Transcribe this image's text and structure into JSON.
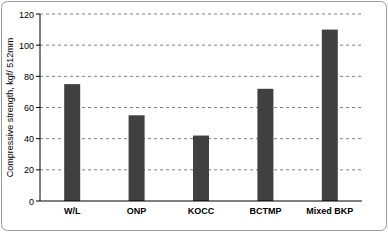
{
  "chart_data": {
    "type": "bar",
    "y_label": "Compressive strength, kgf/ 512mm",
    "categories": [
      "W/L",
      "ONP",
      "KOCC",
      "BCTMP",
      "Mixed BKP"
    ],
    "values": [
      75,
      55,
      42,
      72,
      110
    ],
    "color": "#404040",
    "ylim": [
      0,
      120
    ],
    "yticks": [
      0,
      20,
      40,
      60,
      80,
      100,
      120
    ],
    "grid": true
  }
}
